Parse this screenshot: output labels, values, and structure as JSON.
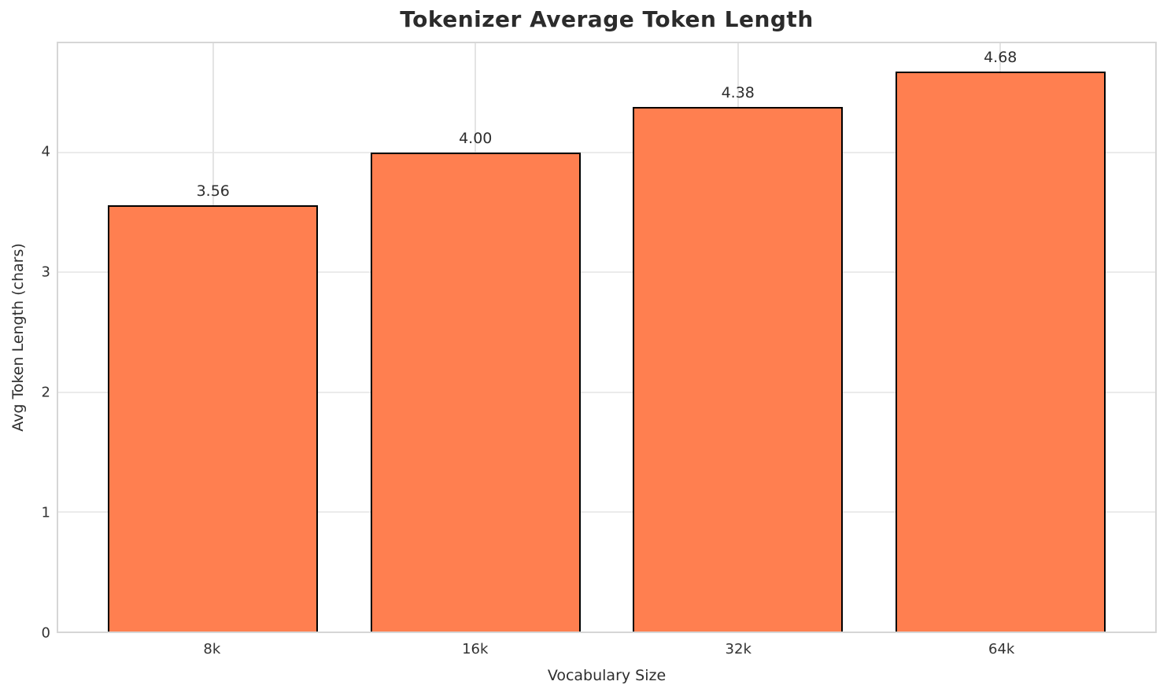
{
  "figure": {
    "title": "Tokenizer Average Token Length"
  },
  "chart_data": {
    "type": "bar",
    "title": "Tokenizer Average Token Length",
    "categories": [
      "8k",
      "16k",
      "32k",
      "64k"
    ],
    "values": [
      3.56,
      4.0,
      4.38,
      4.68
    ],
    "value_labels": [
      "3.56",
      "4.00",
      "4.38",
      "4.68"
    ],
    "xlabel": "Vocabulary Size",
    "ylabel": "Avg Token Length (chars)",
    "ylim": [
      0,
      4.914
    ],
    "yticks": [
      0,
      1,
      2,
      3,
      4
    ],
    "ytick_labels": [
      "0",
      "1",
      "2",
      "3",
      "4"
    ],
    "grid": "both",
    "legend": "none",
    "bar_color": "#FF7F50",
    "bar_edge_color": "#000000",
    "bar_width_units": 0.8,
    "x_units_total": 4.18,
    "x_first_center_units": 0.59
  }
}
